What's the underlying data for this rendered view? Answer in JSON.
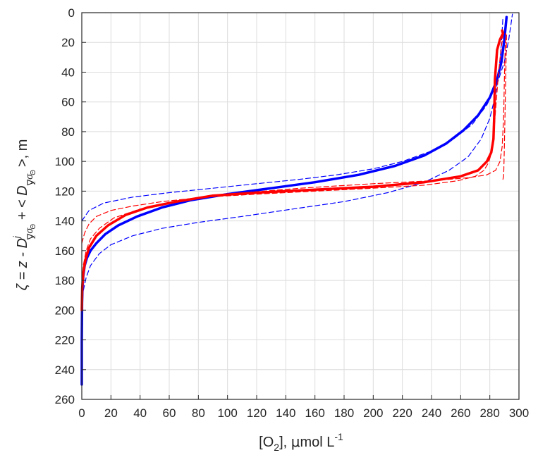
{
  "chart_data": {
    "type": "line",
    "xlabel": "[O2], µmol L-1",
    "xlabel_parts": {
      "main": "[O",
      "sub": "2",
      "mid": "], ",
      "mu": "μ",
      "unit": "mol L",
      "sup": "-1"
    },
    "ylabel": "ζ = z - D^j_{∇zσΘ} + < D_{∇zσΘ} >, m",
    "ylabel_parts": {
      "p1": "ζ = z - D",
      "sup_j": "j",
      "sub_nabla": "∇",
      "sub_z": "z",
      "sub_sigma": "σ",
      "sub_theta": "Θ",
      "p2": " + < D",
      "p3": ">, m"
    },
    "xlim": [
      0,
      300
    ],
    "ylim": [
      260,
      0
    ],
    "y_reversed": true,
    "xticks": [
      0,
      20,
      40,
      60,
      80,
      100,
      120,
      140,
      160,
      180,
      200,
      220,
      240,
      260,
      280,
      300
    ],
    "yticks": [
      0,
      20,
      40,
      60,
      80,
      100,
      120,
      140,
      160,
      180,
      200,
      220,
      240,
      260
    ],
    "grid": true,
    "series": [
      {
        "color": "#0000ff",
        "style": "solid",
        "width": 3.5,
        "x": [
          0,
          0,
          0.2,
          0.5,
          1,
          2,
          3.5,
          6,
          10,
          16,
          25,
          38,
          55,
          75,
          100,
          130,
          160,
          190,
          215,
          235,
          250,
          262,
          272,
          280,
          285,
          288,
          290,
          291.5
        ],
        "y": [
          250,
          220,
          195,
          185,
          177,
          170,
          165,
          160,
          155,
          149,
          143,
          137,
          131,
          126,
          122,
          118,
          114,
          109,
          103,
          96,
          88,
          79,
          69,
          57,
          45,
          33,
          18,
          3
        ]
      },
      {
        "color": "#0000ff",
        "style": "dashed",
        "width": 1.2,
        "x": [
          0,
          1,
          3,
          6,
          12,
          20,
          35,
          55,
          80,
          110,
          145,
          180,
          210,
          235,
          252,
          265,
          274,
          280,
          284,
          286.5,
          288,
          289
        ],
        "y": [
          197,
          187,
          178,
          170,
          162,
          156,
          150,
          145,
          141,
          137,
          132,
          127,
          121,
          114,
          106,
          97,
          85,
          71,
          55,
          37,
          20,
          3
        ]
      },
      {
        "color": "#0000ff",
        "style": "dashed",
        "width": 1.2,
        "x": [
          0,
          5,
          15,
          35,
          60,
          90,
          120,
          150,
          175,
          200,
          220,
          240,
          255,
          268,
          278,
          285,
          290,
          293,
          294.5,
          295.5
        ],
        "y": [
          140,
          133,
          128,
          124,
          121,
          118,
          115,
          112,
          109,
          105,
          100,
          93,
          85,
          75,
          62,
          48,
          33,
          18,
          8,
          1
        ]
      },
      {
        "color": "#ff0000",
        "style": "solid",
        "width": 3.5,
        "x": [
          0,
          0.3,
          1,
          2.5,
          5,
          10,
          18,
          30,
          45,
          65,
          90,
          120,
          160,
          200,
          235,
          260,
          272,
          278,
          281,
          282.5,
          283,
          283.5,
          285,
          287,
          289,
          288.5
        ],
        "y": [
          200,
          185,
          175,
          166,
          158,
          150,
          143,
          136,
          131,
          127,
          123,
          121,
          119,
          117,
          114,
          110,
          106,
          100,
          94,
          85,
          70,
          45,
          25,
          18,
          14,
          12
        ]
      },
      {
        "color": "#ff0000",
        "style": "dashed",
        "width": 1.2,
        "x": [
          0,
          2,
          5,
          10,
          20,
          35,
          55,
          85,
          120,
          160,
          200,
          235,
          258,
          270,
          276,
          279,
          281,
          282.5,
          284,
          286,
          288,
          289.5
        ],
        "y": [
          155,
          148,
          142,
          137,
          133,
          130,
          127,
          124,
          122,
          120,
          118,
          116,
          113,
          110,
          106,
          101,
          95,
          85,
          65,
          40,
          22,
          13
        ]
      },
      {
        "color": "#ff0000",
        "style": "dashed",
        "width": 1.2,
        "x": [
          0,
          1,
          3,
          6,
          12,
          22,
          40,
          65,
          100,
          150,
          200,
          240,
          265,
          278,
          284,
          287,
          288.5,
          289.5,
          290,
          290.5,
          291
        ],
        "y": [
          185,
          170,
          160,
          152,
          145,
          138,
          132,
          127,
          122,
          118,
          115,
          113,
          111,
          109,
          106,
          100,
          90,
          70,
          45,
          25,
          14
        ]
      },
      {
        "color": "#ff0000",
        "style": "dashed",
        "width": 1.2,
        "x": [
          289,
          289.5,
          290,
          291,
          291.5
        ],
        "y": [
          112,
          110,
          90,
          40,
          15
        ]
      }
    ]
  }
}
